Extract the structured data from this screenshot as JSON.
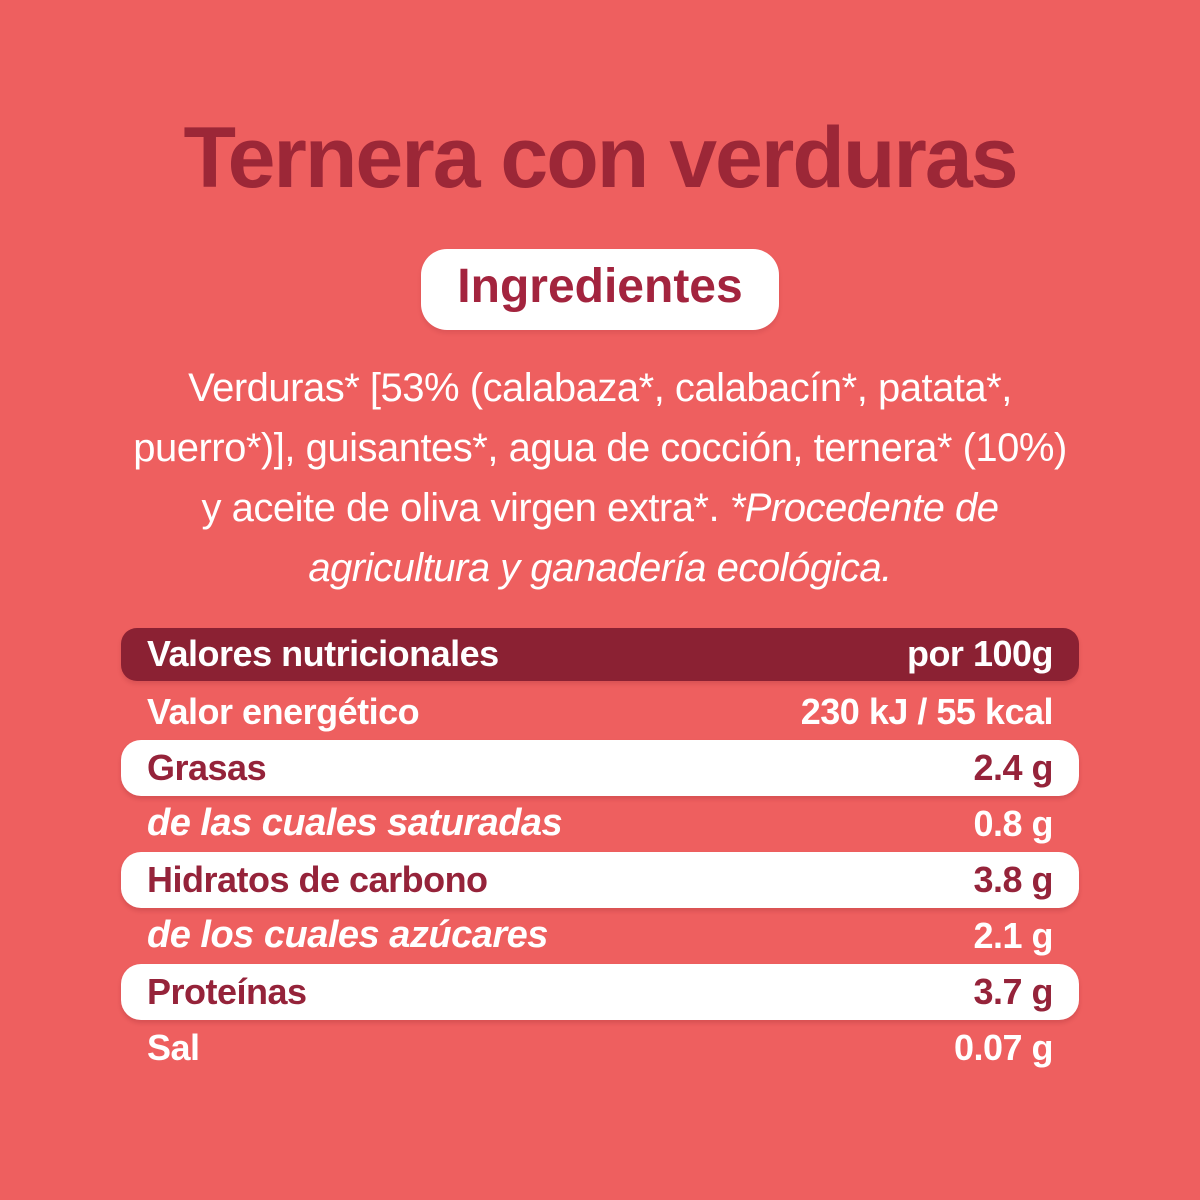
{
  "colors": {
    "background": "#ee5f5f",
    "header_bar": "#8b2133",
    "title_text": "#9c2737",
    "accent_text": "#a3243e",
    "row_text": "#95233a",
    "white": "#ffffff"
  },
  "label": {
    "title": "Ternera con verduras",
    "ingredients": {
      "heading": "Ingredientes",
      "list": "Verduras* [53% (calabaza*, calabacín*, patata*, puerro*)], guisantes*, agua de cocción, ternera* (10%) y aceite de oliva virgen extra*. ",
      "note": "*Procedente de agricultura y ganadería ecológica."
    }
  },
  "nutrition_table": {
    "header": {
      "label": "Valores nutricionales",
      "value": "por 100g"
    },
    "rows": [
      {
        "label": "Valor energético",
        "value": "230 kJ / 55 kcal",
        "sub": false
      },
      {
        "label": "Grasas",
        "value": "2.4 g",
        "sub": false
      },
      {
        "label": "de las cuales saturadas",
        "value": "0.8 g",
        "sub": true
      },
      {
        "label": "Hidratos de carbono",
        "value": "3.8 g",
        "sub": false
      },
      {
        "label": "de los cuales azúcares",
        "value": "2.1 g",
        "sub": true
      },
      {
        "label": "Proteínas",
        "value": "3.7 g",
        "sub": false
      },
      {
        "label": "Sal",
        "value": "0.07 g",
        "sub": false
      }
    ]
  }
}
